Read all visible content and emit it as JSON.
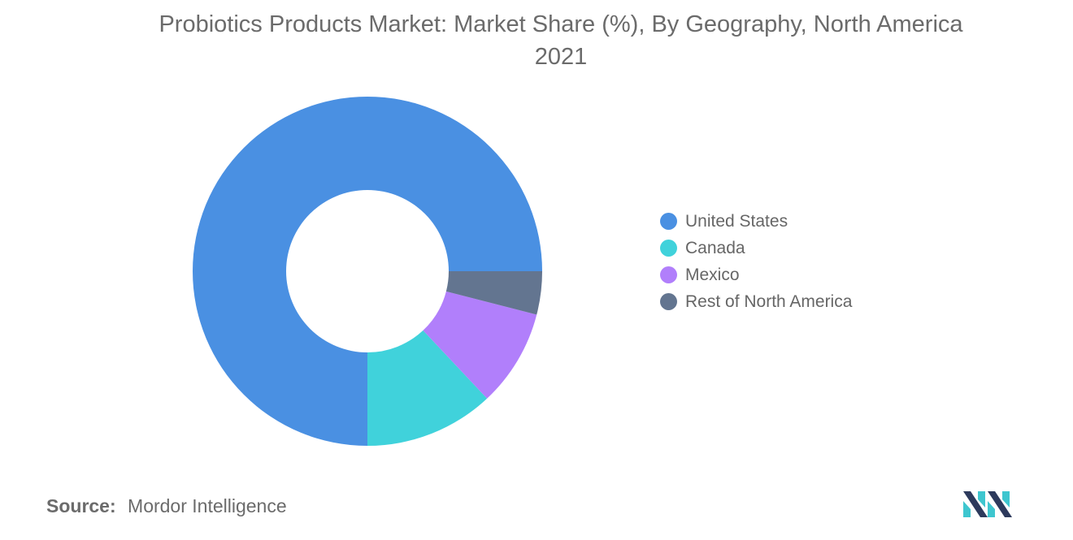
{
  "title_line1": "Probiotics Products Market: Market Share (%), By Geography, North America",
  "title_line2": "2021",
  "source": {
    "label": "Source:",
    "value": "Mordor Intelligence"
  },
  "chart_data": {
    "type": "pie",
    "variant": "donut",
    "title": "Probiotics Products Market: Market Share (%), By Geography, North America 2021",
    "legend_position": "right",
    "series": [
      {
        "name": "United States",
        "value": 75,
        "color": "#4a90e2"
      },
      {
        "name": "Canada",
        "value": 12,
        "color": "#40d2db"
      },
      {
        "name": "Mexico",
        "value": 9,
        "color": "#b17ffb"
      },
      {
        "name": "Rest of North America",
        "value": 4,
        "color": "#637590"
      }
    ]
  }
}
